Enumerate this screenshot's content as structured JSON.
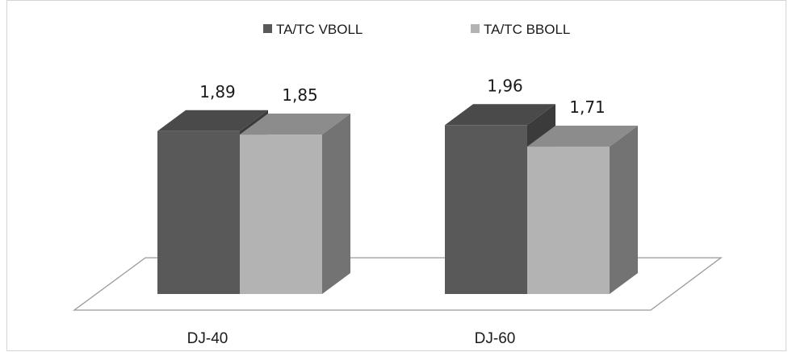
{
  "chart_data": {
    "type": "bar",
    "style": "3d-clustered-column",
    "title": "",
    "xlabel": "",
    "ylabel": "",
    "categories": [
      "DJ-40",
      "DJ-60"
    ],
    "series": [
      {
        "name": "TA/TC VBOLL",
        "values": [
          1.89,
          1.96
        ],
        "labels": [
          "1,89",
          "1,96"
        ],
        "color": "#595959",
        "top_color": "#4a4a4a",
        "side_color": "#3b3b3b"
      },
      {
        "name": "TA/TC BBOLL",
        "values": [
          1.85,
          1.71
        ],
        "labels": [
          "1,85",
          "1,71"
        ],
        "color": "#b3b3b3",
        "top_color": "#8c8c8c",
        "side_color": "#737373"
      }
    ],
    "legend_position": "top",
    "grid": false,
    "floor_color": "#ffffff",
    "floor_stroke": "#9a9a9a"
  }
}
